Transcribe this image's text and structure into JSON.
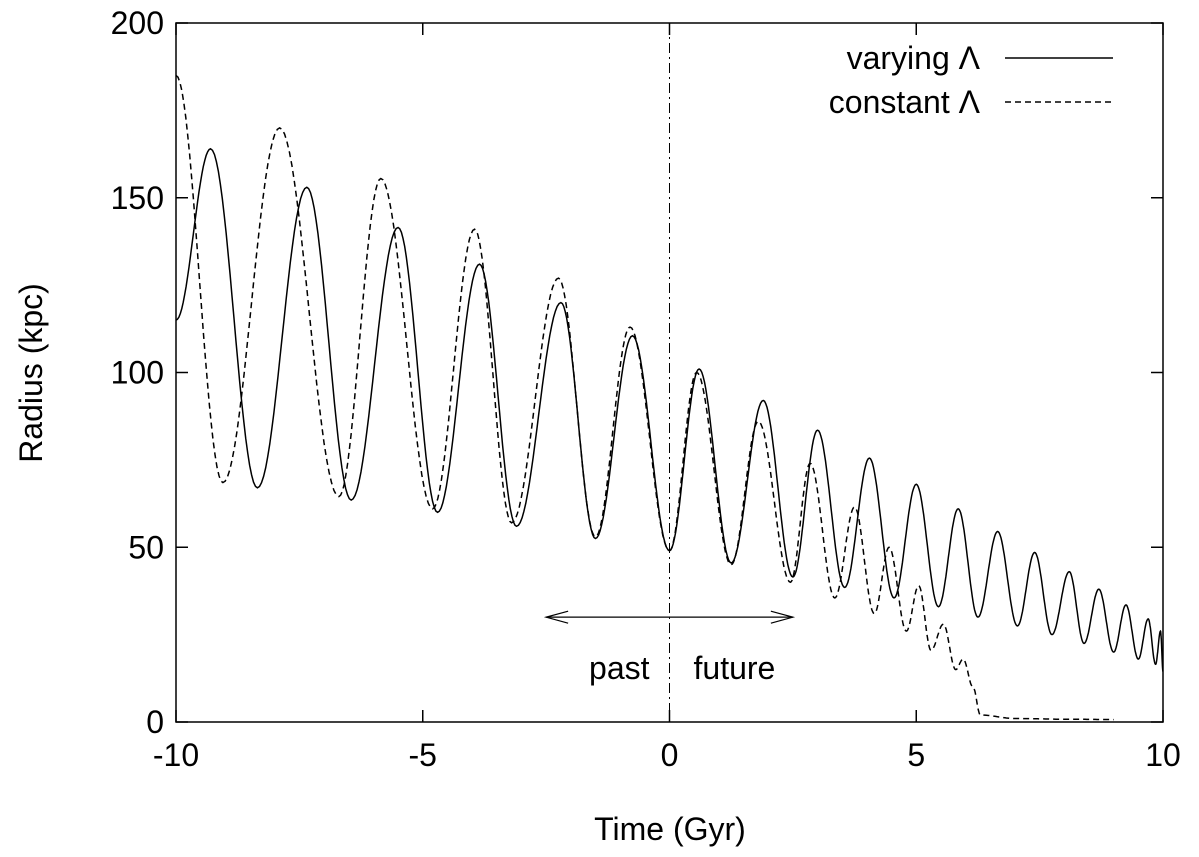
{
  "chart_data": {
    "type": "line",
    "title": "",
    "xlabel": "Time (Gyr)",
    "ylabel": "Radius (kpc)",
    "xlim": [
      -10,
      10
    ],
    "ylim": [
      0,
      200
    ],
    "xticks": [
      -10,
      -5,
      0,
      5,
      10
    ],
    "yticks": [
      0,
      50,
      100,
      150,
      200
    ],
    "xtick_labels": [
      "-10",
      "-5",
      "0",
      "5",
      "10"
    ],
    "ytick_labels": [
      "0",
      "50",
      "100",
      "150",
      "200"
    ],
    "grid": false,
    "legend_position": "top-right",
    "annotations": {
      "present_line_x": 0,
      "past": {
        "text": "past",
        "arrow_from": 0,
        "arrow_to": -2.5,
        "arrow_y": 30
      },
      "future": {
        "text": "future",
        "arrow_from": 0,
        "arrow_to": 2.5,
        "arrow_y": 30
      }
    },
    "series": [
      {
        "name": "varying Λ",
        "style": "solid",
        "color": "#000000",
        "extrema": [
          [
            -10,
            115
          ],
          [
            -9.3,
            164
          ],
          [
            -8.35,
            67
          ],
          [
            -7.35,
            153
          ],
          [
            -6.45,
            63.5
          ],
          [
            -5.5,
            141.5
          ],
          [
            -4.7,
            60
          ],
          [
            -3.85,
            131
          ],
          [
            -3.1,
            56
          ],
          [
            -2.2,
            120
          ],
          [
            -1.5,
            52.5
          ],
          [
            -0.75,
            110.5
          ],
          [
            0,
            49
          ],
          [
            0.6,
            101
          ],
          [
            1.25,
            45.5
          ],
          [
            1.9,
            92
          ],
          [
            2.5,
            41.5
          ],
          [
            3.0,
            83.5
          ],
          [
            3.55,
            38.5
          ],
          [
            4.05,
            75.5
          ],
          [
            4.55,
            35.5
          ],
          [
            5.0,
            68
          ],
          [
            5.45,
            33
          ],
          [
            5.85,
            61
          ],
          [
            6.25,
            30
          ],
          [
            6.65,
            54.5
          ],
          [
            7.05,
            27.5
          ],
          [
            7.4,
            48.5
          ],
          [
            7.75,
            25
          ],
          [
            8.1,
            43
          ],
          [
            8.4,
            22.5
          ],
          [
            8.7,
            38
          ],
          [
            9.0,
            20
          ],
          [
            9.25,
            33.5
          ],
          [
            9.5,
            18
          ],
          [
            9.7,
            29.5
          ],
          [
            9.85,
            16.5
          ],
          [
            9.95,
            26
          ],
          [
            10.0,
            14.5
          ]
        ]
      },
      {
        "name": "constant Λ",
        "style": "dashed",
        "color": "#000000",
        "extrema": [
          [
            -10,
            185
          ],
          [
            -9.05,
            68.5
          ],
          [
            -7.9,
            170
          ],
          [
            -6.7,
            64.5
          ],
          [
            -5.85,
            155.5
          ],
          [
            -4.8,
            61
          ],
          [
            -3.95,
            141
          ],
          [
            -3.2,
            57
          ],
          [
            -2.25,
            127
          ],
          [
            -1.5,
            53
          ],
          [
            -0.8,
            113
          ],
          [
            0,
            49
          ],
          [
            0.55,
            100
          ],
          [
            1.25,
            45
          ],
          [
            1.8,
            86
          ],
          [
            2.45,
            40
          ],
          [
            2.85,
            74
          ],
          [
            3.35,
            35.5
          ],
          [
            3.75,
            61.5
          ],
          [
            4.15,
            31
          ],
          [
            4.45,
            50
          ],
          [
            4.8,
            26
          ],
          [
            5.05,
            39
          ],
          [
            5.3,
            20.5
          ],
          [
            5.55,
            28
          ],
          [
            5.8,
            15
          ],
          [
            5.95,
            18
          ],
          [
            6.15,
            10
          ],
          [
            6.3,
            2
          ],
          [
            7.0,
            1
          ],
          [
            8.0,
            0.8
          ],
          [
            9.0,
            0.7
          ]
        ]
      }
    ]
  }
}
